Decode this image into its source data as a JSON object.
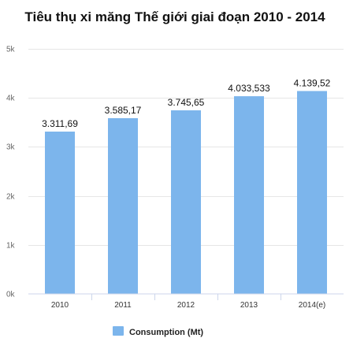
{
  "chart_data": {
    "type": "bar",
    "title": "Tiêu thụ xi măng Thế giới giai đoạn 2010 - 2014",
    "xlabel": "",
    "ylabel": "",
    "categories": [
      "2010",
      "2011",
      "2012",
      "2013",
      "2014(e)"
    ],
    "series": [
      {
        "name": "Consumption (Mt)",
        "values": [
          3311.69,
          3585.17,
          3745.65,
          4033.533,
          4139.52
        ],
        "labels": [
          "3.311,69",
          "3.585,17",
          "3.745,65",
          "4.033,533",
          "4.139,52"
        ],
        "color": "#7cb5ec"
      }
    ],
    "ylim": [
      0,
      5000
    ],
    "yticks": [
      0,
      1000,
      2000,
      3000,
      4000,
      5000
    ],
    "ytick_labels": [
      "0k",
      "1k",
      "2k",
      "3k",
      "4k",
      "5k"
    ],
    "grid": true,
    "legend": "bottom-center"
  }
}
